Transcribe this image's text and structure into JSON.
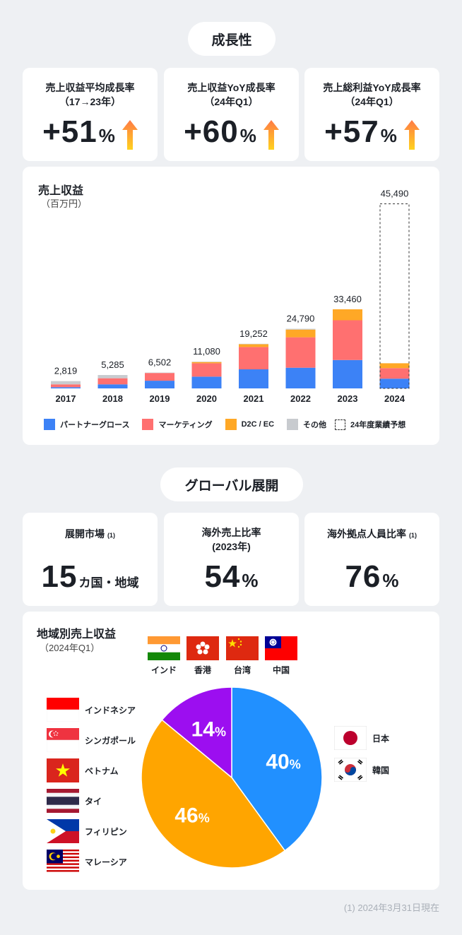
{
  "section1": {
    "title": "成長性"
  },
  "kpis1": [
    {
      "title_line1": "売上収益平均成長率",
      "title_line2": "（17→23年）",
      "value": "+51",
      "unit": "%"
    },
    {
      "title_line1": "売上収益YoY成長率",
      "title_line2": "（24年Q1）",
      "value": "+60",
      "unit": "%"
    },
    {
      "title_line1": "売上総利益YoY成長率",
      "title_line2": "（24年Q1）",
      "value": "+57",
      "unit": "%"
    }
  ],
  "colors": {
    "partner": "#3c82f6",
    "marketing": "#ff7070",
    "d2c": "#ffa826",
    "other": "#c8cbcf",
    "pie_blue": "#2190ff",
    "pie_orange": "#ffa500",
    "pie_purple": "#9c0ef0"
  },
  "chart_data": [
    {
      "type": "bar",
      "title": "売上収益",
      "subtitle": "（百万円）",
      "categories": [
        "2017",
        "2018",
        "2019",
        "2020",
        "2021",
        "2022",
        "2023",
        "2024"
      ],
      "totals_labels": [
        "2,819",
        "5,285",
        "6,502",
        "11,080",
        "19,252",
        "24,790",
        "33,460",
        "45,490"
      ],
      "totals": [
        2819,
        5285,
        6502,
        11080,
        19252,
        24790,
        33460,
        45490
      ],
      "series": [
        {
          "name": "パートナーグロース",
          "key": "partner",
          "values": [
            300,
            1000,
            1900,
            2900,
            4700,
            5100,
            7000,
            2400
          ]
        },
        {
          "name": "マーケティング",
          "key": "marketing",
          "values": [
            700,
            1500,
            1900,
            3300,
            5500,
            7500,
            9800,
            2600
          ]
        },
        {
          "name": "D2C / EC",
          "key": "d2c",
          "values": [
            0,
            0,
            0,
            300,
            700,
            1900,
            2700,
            1200
          ]
        },
        {
          "name": "その他",
          "key": "other",
          "values": [
            800,
            800,
            100,
            100,
            100,
            200,
            0,
            0
          ]
        }
      ],
      "forecast": {
        "name": "24年度業績予想",
        "category": "2024",
        "value": 45490
      },
      "ylim": [
        0,
        47000
      ]
    },
    {
      "type": "pie",
      "title": "地域別売上収益",
      "subtitle": "（2024年Q1）",
      "slices": [
        {
          "label": "40%",
          "value": 40,
          "color_key": "pie_blue"
        },
        {
          "label": "46%",
          "value": 46,
          "color_key": "pie_orange"
        },
        {
          "label": "14%",
          "value": 14,
          "color_key": "pie_purple"
        }
      ]
    }
  ],
  "section2": {
    "title": "グローバル展開"
  },
  "kpis2": [
    {
      "title_line1": "展開市場",
      "note": "(1)",
      "value": "15",
      "unit": "カ国・地域"
    },
    {
      "title_line1": "海外売上比率",
      "title_line2": "(2023年)",
      "value": "54",
      "unit": "%"
    },
    {
      "title_line1": "海外拠点人員比率",
      "note": "(1)",
      "value": "76",
      "unit": "%"
    }
  ],
  "flags": {
    "top": [
      {
        "label": "インド",
        "icon": "india-flag-icon"
      },
      {
        "label": "香港",
        "icon": "hong-kong-flag-icon"
      },
      {
        "label": "台湾",
        "icon": "china-flag-icon"
      },
      {
        "label": "中国",
        "icon": "taiwan-flag-icon"
      }
    ],
    "left": [
      {
        "label": "インドネシア",
        "icon": "indonesia-flag-icon"
      },
      {
        "label": "シンガポール",
        "icon": "singapore-flag-icon"
      },
      {
        "label": "ベトナム",
        "icon": "vietnam-flag-icon"
      },
      {
        "label": "タイ",
        "icon": "thailand-flag-icon"
      },
      {
        "label": "フィリピン",
        "icon": "philippines-flag-icon"
      },
      {
        "label": "マレーシア",
        "icon": "malaysia-flag-icon"
      }
    ],
    "right": [
      {
        "label": "日本",
        "icon": "japan-flag-icon"
      },
      {
        "label": "韓国",
        "icon": "korea-flag-icon"
      }
    ]
  },
  "footnote": "(1) 2024年3月31日現在"
}
